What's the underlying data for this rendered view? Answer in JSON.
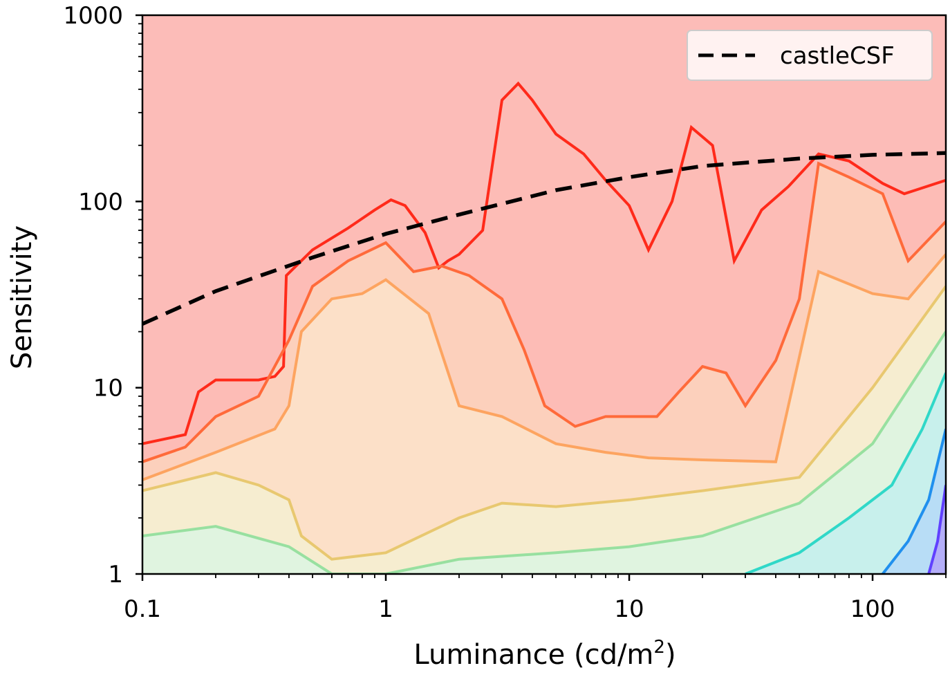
{
  "chart_data": {
    "type": "contour",
    "xscale": "log",
    "yscale": "log",
    "xlim": [
      0.1,
      200
    ],
    "ylim": [
      1,
      1000
    ],
    "xlabel": "Luminance (cd/m",
    "xlabel_sup": "2",
    "xlabel_close": ")",
    "ylabel": "Sensitivity",
    "xticks": [
      {
        "value": 0.1,
        "label": "0.1"
      },
      {
        "value": 1,
        "label": "1"
      },
      {
        "value": 10,
        "label": "10"
      },
      {
        "value": 100,
        "label": "100"
      }
    ],
    "yticks": [
      {
        "value": 1,
        "label": "1"
      },
      {
        "value": 10,
        "label": "10"
      },
      {
        "value": 100,
        "label": "100"
      },
      {
        "value": 1000,
        "label": "1000"
      }
    ],
    "legend": {
      "position": "top-right",
      "entries": [
        {
          "name": "castleCSF",
          "style": "dashed",
          "color": "#000000"
        }
      ]
    },
    "series": [
      {
        "name": "castleCSF",
        "style": "dashed",
        "color": "#000000",
        "x": [
          0.1,
          0.2,
          0.5,
          1,
          2,
          5,
          10,
          20,
          50,
          100,
          200
        ],
        "y": [
          22,
          33,
          50,
          67,
          85,
          115,
          135,
          155,
          170,
          178,
          182
        ]
      }
    ],
    "contours": [
      {
        "color": "#ff2a1a",
        "fill": "#fdbcb6",
        "x": [
          0.1,
          0.15,
          0.17,
          0.2,
          0.3,
          0.35,
          0.38,
          0.39,
          0.5,
          0.7,
          0.9,
          1.05,
          1.2,
          1.45,
          1.65,
          1.8,
          2.0,
          2.5,
          3.0,
          3.5,
          4.0,
          5.0,
          6.5,
          8.0,
          10,
          12,
          15,
          18,
          22,
          27,
          35,
          45,
          60,
          80,
          110,
          135,
          150,
          200
        ],
        "y": [
          5,
          5.6,
          9.5,
          11,
          11,
          11.5,
          13,
          40,
          55,
          72,
          90,
          102,
          95,
          68,
          44,
          48,
          52,
          70,
          350,
          430,
          350,
          230,
          180,
          130,
          95,
          55,
          100,
          250,
          200,
          48,
          90,
          120,
          180,
          165,
          125,
          110,
          115,
          130
        ]
      },
      {
        "color": "#ff6a3a",
        "fill": "#fcd0bc",
        "x": [
          0.1,
          0.15,
          0.2,
          0.3,
          0.4,
          0.5,
          0.7,
          1.0,
          1.3,
          1.7,
          2.2,
          3.0,
          3.7,
          4.5,
          6,
          8,
          10,
          13,
          16,
          20,
          25,
          30,
          40,
          50,
          60,
          80,
          110,
          140,
          200
        ],
        "y": [
          4,
          4.8,
          7,
          9,
          18,
          35,
          48,
          60,
          42,
          45,
          40,
          30,
          16,
          8,
          6.2,
          7,
          7,
          7,
          9.5,
          13,
          12,
          8,
          14,
          30,
          160,
          135,
          110,
          48,
          78
        ]
      },
      {
        "color": "#fda460",
        "fill": "#fce0c8",
        "x": [
          0.1,
          0.2,
          0.35,
          0.4,
          0.45,
          0.6,
          0.8,
          1.0,
          1.5,
          2.0,
          3.0,
          5,
          8,
          12,
          20,
          40,
          60,
          100,
          140,
          200
        ],
        "y": [
          3.2,
          4.5,
          6,
          8,
          20,
          30,
          32,
          38,
          25,
          8,
          7,
          5,
          4.5,
          4.2,
          4.1,
          4.0,
          42,
          32,
          30,
          52
        ]
      },
      {
        "color": "#e8c870",
        "fill": "#f6edd0",
        "x": [
          0.1,
          0.2,
          0.3,
          0.4,
          0.45,
          0.6,
          1.0,
          2.0,
          3.0,
          5,
          10,
          20,
          50,
          100,
          200
        ],
        "y": [
          2.8,
          3.5,
          3.0,
          2.5,
          1.6,
          1.2,
          1.3,
          2.0,
          2.4,
          2.3,
          2.5,
          2.8,
          3.3,
          10,
          35
        ]
      },
      {
        "color": "#98e0a0",
        "fill": "#e0f4e0",
        "x": [
          0.1,
          0.2,
          0.4,
          0.6,
          1.0,
          2,
          5,
          10,
          20,
          50,
          100,
          200
        ],
        "y": [
          1.6,
          1.8,
          1.4,
          1.0,
          1.0,
          1.2,
          1.3,
          1.4,
          1.6,
          2.4,
          5,
          20
        ]
      },
      {
        "color": "#30d8c8",
        "fill": "#c8f0ec",
        "x": [
          30,
          50,
          80,
          120,
          160,
          200
        ],
        "y": [
          1.0,
          1.3,
          2.0,
          3.0,
          6,
          12
        ]
      },
      {
        "color": "#2090ee",
        "fill": "#b8ddf6",
        "x": [
          110,
          140,
          170,
          200
        ],
        "y": [
          1.0,
          1.5,
          2.5,
          6
        ]
      },
      {
        "color": "#6040ff",
        "fill": "#b4aef8",
        "x": [
          170,
          185,
          200
        ],
        "y": [
          1.0,
          1.5,
          3.0
        ]
      }
    ]
  }
}
